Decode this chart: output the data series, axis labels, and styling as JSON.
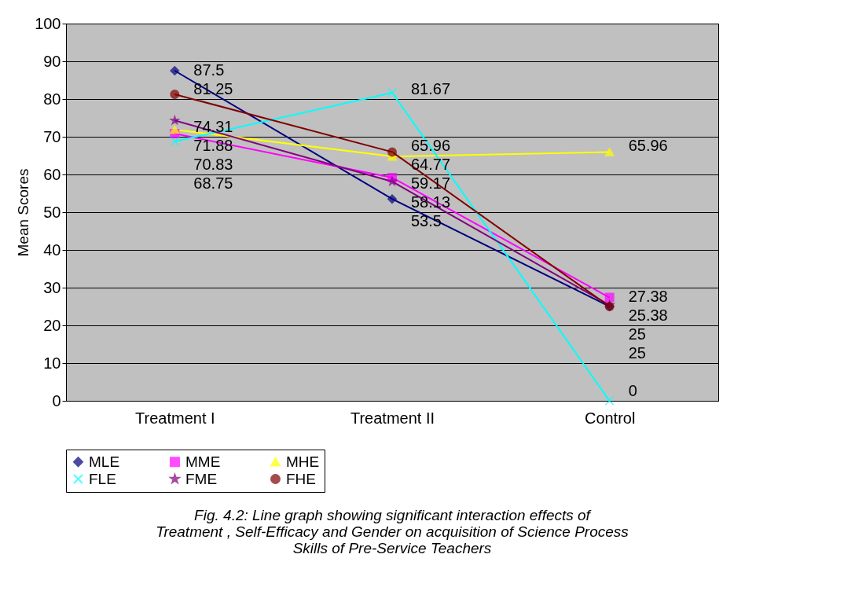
{
  "chart_data": {
    "type": "line",
    "ylabel": "Mean Scores",
    "categories": [
      "Treatment I",
      "Treatment II",
      "Control"
    ],
    "ylim": [
      0,
      100
    ],
    "yticks": [
      0,
      10,
      20,
      30,
      40,
      50,
      60,
      70,
      80,
      90,
      100
    ],
    "grid": "y",
    "legend": "bottom",
    "data_labels": true,
    "series": [
      {
        "name": "MLE",
        "color": "#000080",
        "marker": "diamond",
        "values": [
          87.5,
          53.5,
          25
        ]
      },
      {
        "name": "MME",
        "color": "#ff00ff",
        "marker": "square",
        "values": [
          70.83,
          59.17,
          27.38
        ]
      },
      {
        "name": "MHE",
        "color": "#ffff00",
        "marker": "triangle",
        "values": [
          71.88,
          64.77,
          65.96
        ]
      },
      {
        "name": "FLE",
        "color": "#00ffff",
        "marker": "cross",
        "values": [
          68.75,
          81.67,
          0
        ]
      },
      {
        "name": "FME",
        "color": "#800080",
        "marker": "star",
        "values": [
          74.31,
          58.13,
          25.38
        ]
      },
      {
        "name": "FHE",
        "color": "#800000",
        "marker": "circle",
        "values": [
          81.25,
          65.96,
          25
        ]
      }
    ],
    "annotations": [
      "Fig. 4.2: Line graph showing significant interaction effects of Treatment , Self-Efficacy and Gender on acquisition of Science Process Skills of Pre-Service Teachers"
    ]
  }
}
